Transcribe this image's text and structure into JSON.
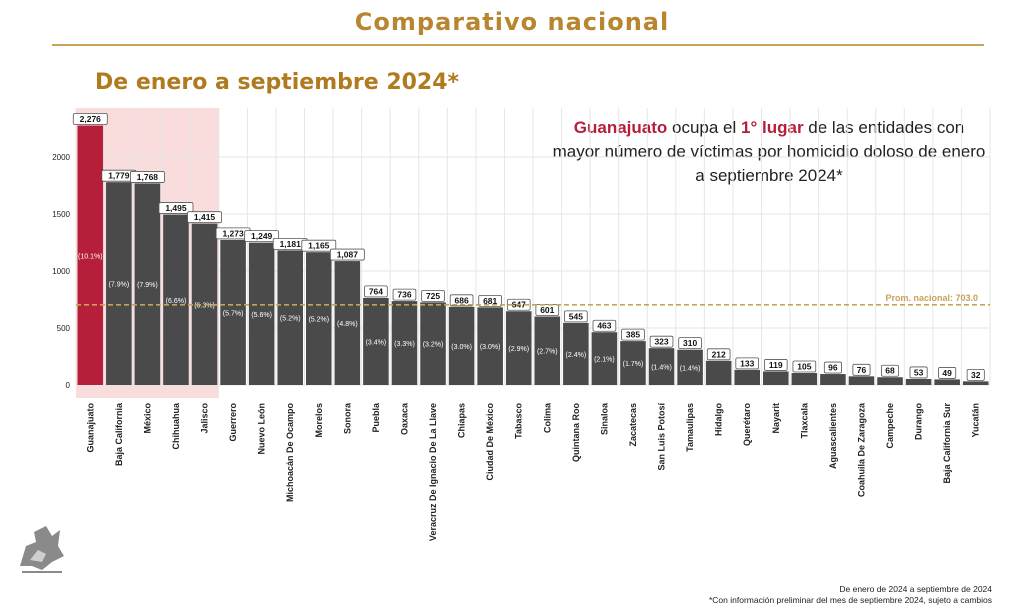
{
  "header": {
    "title": "Comparativo nacional"
  },
  "subtitle": "De enero a septiembre 2024*",
  "callout": {
    "state": "Guanajuato",
    "t1": " ocupa el ",
    "rank": "1° lugar",
    "t2": " de las entidades con mayor número de víctimas por homicidio doloso de enero a septiembre 2024*"
  },
  "footer": {
    "line1": "De enero de 2024 a septiembre de 2024",
    "line2": "*Con información preliminar del mes de septiembre 2024, sujeto a cambios"
  },
  "colors": {
    "highlight_bar": "#b51f3a",
    "bar": "#4a4a4a",
    "avg_line": "#c9a25a",
    "highlight_band": "#f9dcdc",
    "title_gold": "#b8862e"
  },
  "chart_data": {
    "type": "bar",
    "categories": [
      "Guanajuato",
      "Baja California",
      "México",
      "Chihuahua",
      "Jalisco",
      "Guerrero",
      "Nuevo León",
      "Michoacán De Ocampo",
      "Morelos",
      "Sonora",
      "Puebla",
      "Oaxaca",
      "Veracruz De Ignacio De La Llave",
      "Chiapas",
      "Ciudad De México",
      "Tabasco",
      "Colima",
      "Quintana Roo",
      "Sinaloa",
      "Zacatecas",
      "San Luis Potosí",
      "Tamaulipas",
      "Hidalgo",
      "Querétaro",
      "Nayarit",
      "Tlaxcala",
      "Aguascalientes",
      "Coahuila De Zaragoza",
      "Campeche",
      "Durango",
      "Baja California Sur",
      "Yucatán"
    ],
    "values": [
      2276,
      1779,
      1768,
      1495,
      1415,
      1273,
      1249,
      1181,
      1165,
      1087,
      764,
      736,
      725,
      686,
      681,
      647,
      601,
      545,
      463,
      385,
      323,
      310,
      212,
      133,
      119,
      105,
      96,
      76,
      68,
      53,
      49,
      32
    ],
    "value_labels": [
      "2,276",
      "1,779",
      "1,768",
      "1,495",
      "1,415",
      "1,273",
      "1,249",
      "1,181",
      "1,165",
      "1,087",
      "764",
      "736",
      "725",
      "686",
      "681",
      "647",
      "601",
      "545",
      "463",
      "385",
      "323",
      "310",
      "212",
      "133",
      "119",
      "105",
      "96",
      "76",
      "68",
      "53",
      "49",
      "32"
    ],
    "percent_labels": [
      "(10.1%)",
      "(7.9%)",
      "(7.9%)",
      "(6.6%)",
      "(6.3%)",
      "(5.7%)",
      "(5.6%)",
      "(5.2%)",
      "(5.2%)",
      "(4.8%)",
      "(3.4%)",
      "(3.3%)",
      "(3.2%)",
      "(3.0%)",
      "(3.0%)",
      "(2.9%)",
      "(2.7%)",
      "(2.4%)",
      "(2.1%)",
      "(1.7%)",
      "(1.4%)",
      "(1.4%)",
      "",
      "",
      "",
      "",
      "",
      "",
      "",
      "",
      "",
      ""
    ],
    "y_ticks": [
      0,
      500,
      1000,
      1500,
      2000
    ],
    "ylim": [
      0,
      2400
    ],
    "average": {
      "value": 703.0,
      "label": "Prom. nacional: 703.0"
    },
    "highlighted_categories": [
      "Guanajuato",
      "Baja California",
      "México",
      "Chihuahua",
      "Jalisco"
    ],
    "grid": true
  }
}
